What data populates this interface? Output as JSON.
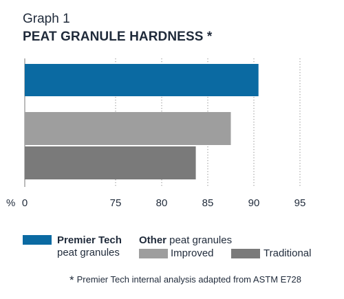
{
  "header": {
    "graph_number": "Graph 1",
    "title": "PEAT GRANULE HARDNESS *"
  },
  "chart_data": {
    "type": "bar",
    "orientation": "horizontal",
    "x_unit_label": "%",
    "x_ticks": [
      0,
      75,
      80,
      85,
      90,
      95
    ],
    "x_axis_break": true,
    "gridlines": true,
    "series": [
      {
        "name": "Premier Tech peat granules",
        "value": 90.5,
        "color": "#0b6aa2"
      },
      {
        "name": "Improved",
        "value": 87.5,
        "color": "#9e9e9e"
      },
      {
        "name": "Traditional",
        "value": 83.7,
        "color": "#7a7a7a"
      }
    ]
  },
  "legend": {
    "premier_bold": "Premier Tech",
    "premier_rest": "peat granules",
    "other_bold": "Other",
    "other_rest": " peat granules",
    "improved": "Improved",
    "traditional": "Traditional"
  },
  "footnote": {
    "star": "*",
    "text": "Premier Tech internal analysis adapted from ASTM E728"
  }
}
